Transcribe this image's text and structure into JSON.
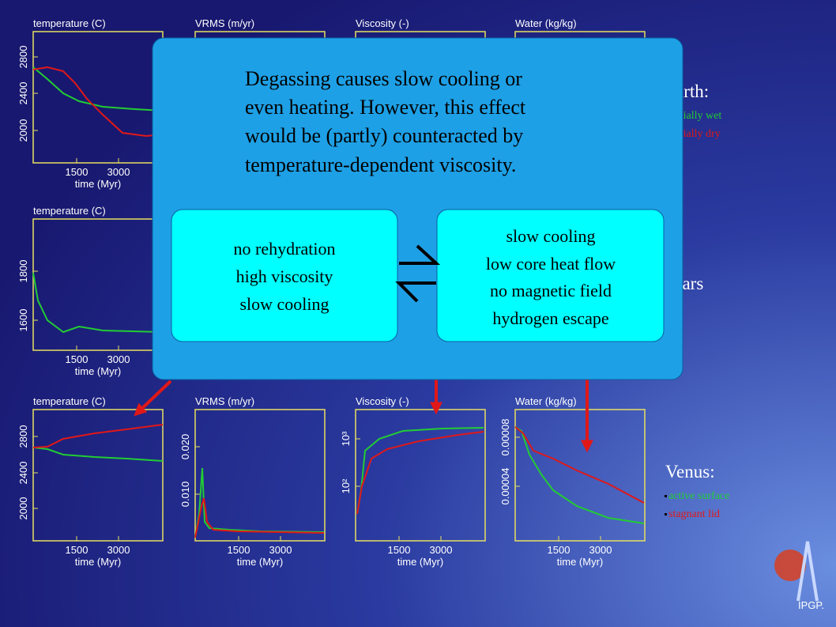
{
  "panels": [
    {
      "title": "temperature (C)",
      "yticks": [
        "2000",
        "2400",
        "2800"
      ],
      "xticks": [
        "1500",
        "3000"
      ],
      "xlabel": "time (Myr)"
    },
    {
      "title": "VRMS (m/yr)"
    },
    {
      "title": "Viscosity (-)"
    },
    {
      "title": "Water (kg/kg)"
    },
    {
      "title": "temperature (C)",
      "yticks": [
        "1600",
        "1800"
      ],
      "xticks": [
        "1500",
        "3000"
      ],
      "xlabel": "time (Myr)"
    },
    {
      "title": "temperature (C)",
      "yticks": [
        "2000",
        "2400",
        "2800"
      ],
      "xticks": [
        "1500",
        "3000"
      ],
      "xlabel": "time (Myr)"
    },
    {
      "title": "VRMS (m/yr)",
      "yticks": [
        "0.010",
        "0.020"
      ],
      "xticks": [
        "1500",
        "3000"
      ],
      "xlabel": "time (Myr)"
    },
    {
      "title": "Viscosity (-)",
      "yticks": [
        "10²",
        "10³"
      ],
      "xticks": [
        "1500",
        "3000"
      ],
      "xlabel": "time (Myr)"
    },
    {
      "title": "Water (kg/kg)",
      "yticks": [
        "0.00004",
        "0.00008"
      ],
      "xticks": [
        "1500",
        "3000"
      ],
      "xlabel": "time (Myr)"
    }
  ],
  "earth": {
    "title": "Earth:",
    "items": [
      "initially wet",
      "initially dry"
    ]
  },
  "mars": {
    "title": "Mars"
  },
  "venus": {
    "title": "Venus:",
    "items": [
      "active surface",
      "stagnant lid"
    ]
  },
  "overlay": {
    "lines": [
      "Degassing causes slow cooling or",
      "even heating. However, this effect",
      "would be (partly) counteracted by",
      "temperature-dependent viscosity."
    ],
    "left_box": [
      "no rehydration",
      "high viscosity",
      "slow cooling"
    ],
    "right_box": [
      "slow cooling",
      "low core heat flow",
      "no magnetic field",
      "hydrogen escape"
    ]
  },
  "logo": "IPGP."
}
